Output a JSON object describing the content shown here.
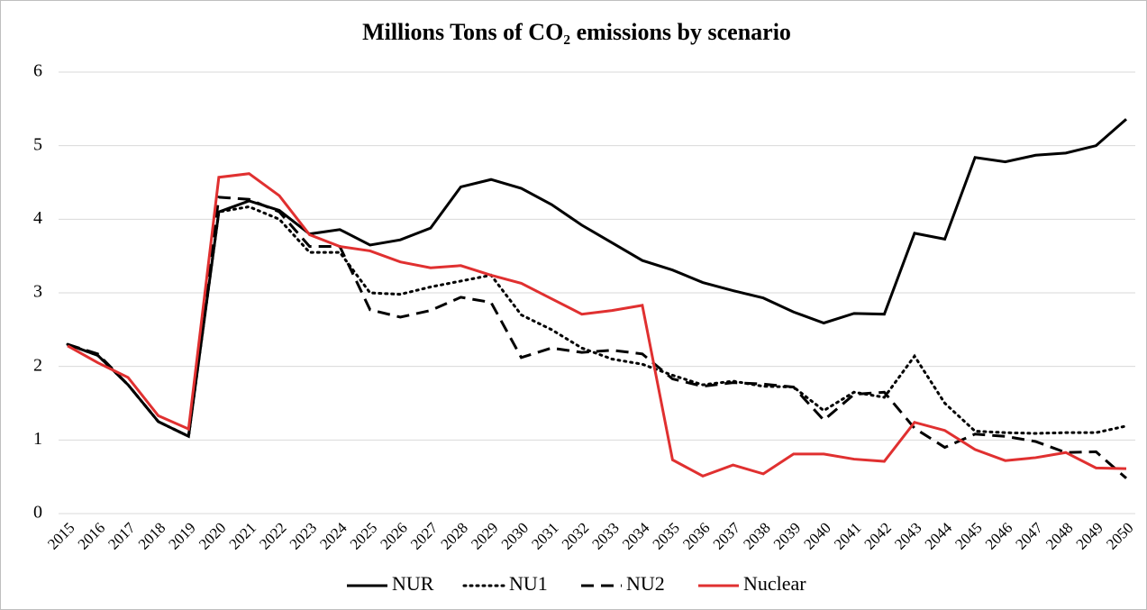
{
  "chart_data": {
    "type": "line",
    "title": "Millions Tons of CO₂ emissions by scenario",
    "categories": [
      "2015",
      "2016",
      "2017",
      "2018",
      "2019",
      "2020",
      "2021",
      "2022",
      "2023",
      "2024",
      "2025",
      "2026",
      "2027",
      "2028",
      "2029",
      "2030",
      "2031",
      "2032",
      "2033",
      "2034",
      "2035",
      "2036",
      "2037",
      "2038",
      "2039",
      "2040",
      "2041",
      "2042",
      "2043",
      "2044",
      "2045",
      "2046",
      "2047",
      "2048",
      "2049",
      "2050"
    ],
    "series": [
      {
        "name": "NUR",
        "color": "#000000",
        "dash": "solid",
        "values": [
          2.3,
          2.15,
          1.75,
          1.25,
          1.05,
          4.1,
          4.25,
          4.12,
          3.8,
          3.86,
          3.65,
          3.72,
          3.88,
          4.44,
          4.54,
          4.42,
          4.2,
          3.92,
          3.68,
          3.44,
          3.31,
          3.14,
          3.03,
          2.93,
          2.74,
          2.59,
          2.72,
          2.71,
          3.81,
          3.73,
          4.84,
          4.78,
          4.87,
          4.9,
          5.0,
          5.36
        ]
      },
      {
        "name": "NU1",
        "color": "#000000",
        "dash": "dotted",
        "values": [
          2.3,
          2.15,
          1.75,
          1.25,
          1.05,
          4.1,
          4.17,
          4.0,
          3.55,
          3.55,
          3.0,
          2.98,
          3.08,
          3.16,
          3.24,
          2.7,
          2.5,
          2.25,
          2.1,
          2.03,
          1.88,
          1.75,
          1.8,
          1.73,
          1.72,
          1.4,
          1.65,
          1.58,
          2.14,
          1.5,
          1.12,
          1.1,
          1.09,
          1.1,
          1.1,
          1.19
        ]
      },
      {
        "name": "NU2",
        "color": "#000000",
        "dash": "dashed",
        "values": [
          2.3,
          2.17,
          1.75,
          1.25,
          1.05,
          4.3,
          4.27,
          4.1,
          3.63,
          3.63,
          2.77,
          2.67,
          2.76,
          2.94,
          2.87,
          2.12,
          2.25,
          2.19,
          2.22,
          2.17,
          1.83,
          1.73,
          1.78,
          1.76,
          1.72,
          1.27,
          1.62,
          1.65,
          1.16,
          0.9,
          1.08,
          1.05,
          0.98,
          0.83,
          0.84,
          0.48
        ]
      },
      {
        "name": "Nuclear",
        "color": "#e03030",
        "dash": "solid",
        "values": [
          2.28,
          2.05,
          1.85,
          1.33,
          1.15,
          4.57,
          4.62,
          4.32,
          3.79,
          3.63,
          3.57,
          3.42,
          3.34,
          3.37,
          3.24,
          3.13,
          2.92,
          2.71,
          2.76,
          2.83,
          0.73,
          0.51,
          0.66,
          0.54,
          0.81,
          0.81,
          0.74,
          0.71,
          1.24,
          1.13,
          0.87,
          0.72,
          0.76,
          0.83,
          0.62,
          0.61
        ]
      }
    ],
    "ylim": [
      0,
      6
    ],
    "yticks": [
      0,
      1,
      2,
      3,
      4,
      5,
      6
    ],
    "grid": true,
    "legend": "bottom"
  }
}
